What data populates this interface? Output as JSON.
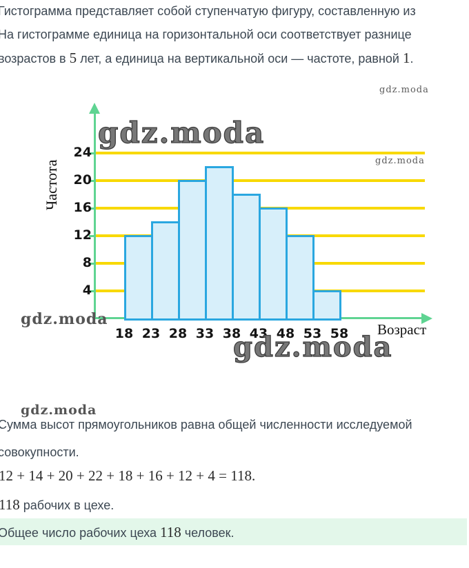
{
  "watermark": "gdz.moda",
  "intro": {
    "line1": "Гистограмма представляет собой ступенчатую фигуру, составленную из",
    "line2": "На гистограмме единица на горизонтальной оси соответствует разнице",
    "line3": {
      "a": "возрастов в ",
      "num1": "5",
      "b": " лет, а единица на вертикальной оси — частоте, равной ",
      "num2": "1",
      "c": "."
    }
  },
  "chart_data": {
    "type": "bar",
    "title": "",
    "xlabel": "Возраст",
    "ylabel": "Частота",
    "x_ticks": [
      18,
      23,
      28,
      33,
      38,
      43,
      48,
      53,
      58
    ],
    "bin_width_years": 5,
    "values": [
      12,
      14,
      20,
      22,
      18,
      16,
      12,
      4
    ],
    "y_ticks": [
      4,
      8,
      12,
      16,
      20,
      24
    ],
    "ylim": [
      0,
      26
    ],
    "grid": "horizontal-yellow-lines",
    "legend": "none",
    "colors": {
      "grid": "#f8d900",
      "axis": "#5fd492",
      "bar_fill": "#d7effa",
      "bar_border": "#2aa7e0"
    }
  },
  "summary": {
    "line1": "Сумма высот прямоугольников равна общей численности исследуемой",
    "line2": "совокупности."
  },
  "equation": "12 + 14 + 20 + 22 + 18 + 16 + 12 + 4 = 118.",
  "result": {
    "num": "118",
    "text": " рабочих в цехе."
  },
  "highlight": {
    "a": "Общее число рабочих цеха ",
    "num": "118",
    "b": " человек."
  },
  "colors": {
    "text": "#3c4752",
    "highlight_bg": "#e3f7ea"
  }
}
